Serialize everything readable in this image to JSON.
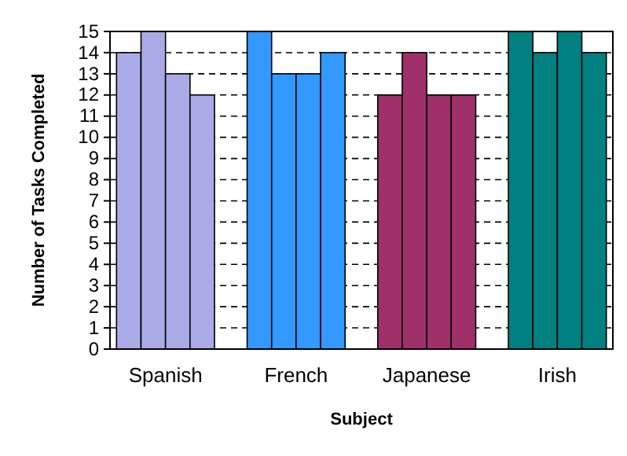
{
  "chart_data": {
    "type": "bar",
    "xlabel": "Subject",
    "ylabel": "Number of Tasks Completed",
    "categories": [
      "Spanish",
      "French",
      "Japanese",
      "Irish"
    ],
    "series": [
      {
        "colors": [
          "#aaaae6",
          "#3399ff",
          "#a0306a",
          "#008080"
        ],
        "values": [
          14,
          15,
          12,
          15
        ]
      },
      {
        "colors": [
          "#aaaae6",
          "#3399ff",
          "#a0306a",
          "#008080"
        ],
        "values": [
          15,
          13,
          14,
          14
        ]
      },
      {
        "colors": [
          "#aaaae6",
          "#3399ff",
          "#a0306a",
          "#008080"
        ],
        "values": [
          13,
          13,
          12,
          15
        ]
      },
      {
        "colors": [
          "#aaaae6",
          "#3399ff",
          "#a0306a",
          "#008080"
        ],
        "values": [
          12,
          14,
          12,
          14
        ]
      }
    ],
    "ylim": [
      0,
      15
    ],
    "yticks": [
      0,
      1,
      2,
      3,
      4,
      5,
      6,
      7,
      8,
      9,
      10,
      11,
      12,
      13,
      14,
      15
    ],
    "grid": "y"
  }
}
